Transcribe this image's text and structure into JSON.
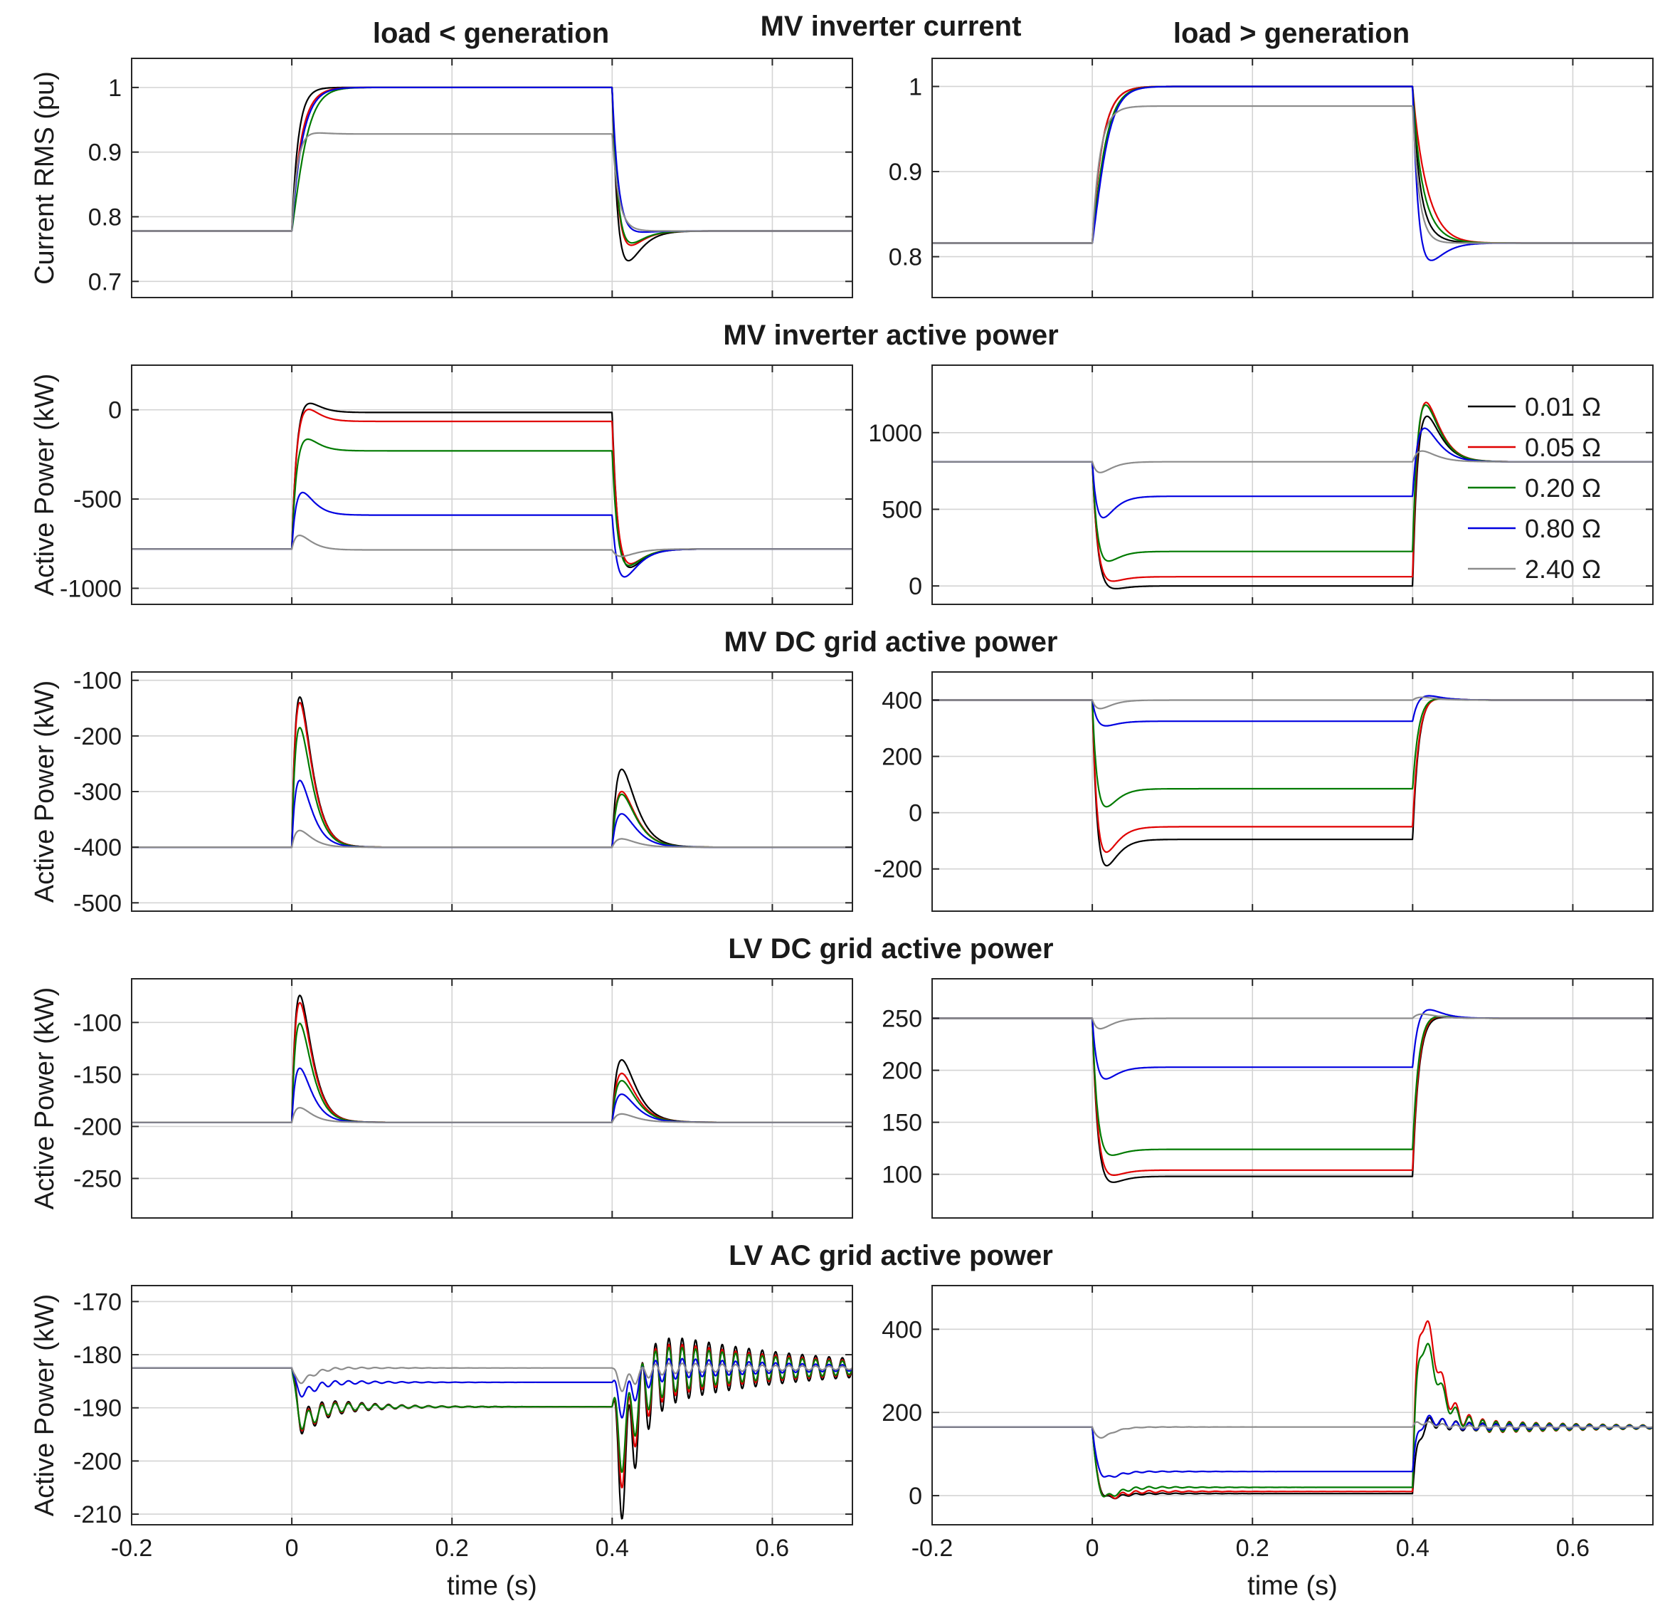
{
  "figure": {
    "col_titles": [
      "load < generation",
      "load > generation"
    ],
    "xlabel": "time (s)",
    "xlim": [
      -0.2,
      0.7
    ],
    "xticks": [
      -0.2,
      0,
      0.2,
      0.4,
      0.6
    ],
    "xtick_labels": [
      "-0.2",
      "0",
      "0.2",
      "0.4",
      "0.6"
    ]
  },
  "legend": {
    "entries": [
      {
        "label": "0.01 Ω",
        "color": "#000000"
      },
      {
        "label": "0.05 Ω",
        "color": "#e00000"
      },
      {
        "label": "0.20 Ω",
        "color": "#007a00"
      },
      {
        "label": "0.80 Ω",
        "color": "#0000e0"
      },
      {
        "label": "2.40 Ω",
        "color": "#8c8c8c"
      }
    ]
  },
  "chart_data": [
    {
      "type": "line",
      "title": "MV inverter current",
      "ylabel": "Current RMS (pu)",
      "left": {
        "ylim": [
          0.675,
          1.045
        ],
        "yticks": [
          0.7,
          0.8,
          0.9,
          1
        ],
        "ytick_labels": [
          "0.7",
          "0.8",
          "0.9",
          "1"
        ],
        "series": [
          {
            "name": "0.01 Ω",
            "initial": 0.778,
            "during": 1.0,
            "final": 0.778,
            "on_spike": 0.0,
            "off_spike": -0.075,
            "osc": 0.0
          },
          {
            "name": "0.05 Ω",
            "initial": 0.778,
            "during": 1.0,
            "final": 0.778,
            "on_spike": -0.03,
            "off_spike": -0.045,
            "osc": 0.0
          },
          {
            "name": "0.20 Ω",
            "initial": 0.778,
            "during": 1.0,
            "final": 0.778,
            "on_spike": -0.07,
            "off_spike": -0.04,
            "osc": 0.0
          },
          {
            "name": "0.80 Ω",
            "initial": 0.778,
            "during": 1.0,
            "final": 0.778,
            "on_spike": -0.04,
            "off_spike": -0.01,
            "osc": 0.0
          },
          {
            "name": "2.40 Ω",
            "initial": 0.778,
            "during": 0.928,
            "final": 0.778,
            "on_spike": 0.012,
            "off_spike": 0.0,
            "osc": 0.0
          }
        ]
      },
      "right": {
        "ylim": [
          0.752,
          1.033
        ],
        "yticks": [
          0.8,
          0.9,
          1
        ],
        "ytick_labels": [
          "0.8",
          "0.9",
          "1"
        ],
        "series": [
          {
            "name": "0.01 Ω",
            "initial": 0.816,
            "during": 1.0,
            "final": 0.816,
            "on_spike": -0.03,
            "off_spike": 0.012,
            "osc": 0.0
          },
          {
            "name": "0.05 Ω",
            "initial": 0.816,
            "during": 1.0,
            "final": 0.816,
            "on_spike": -0.03,
            "off_spike": 0.05,
            "osc": 0.0
          },
          {
            "name": "0.20 Ω",
            "initial": 0.816,
            "during": 1.0,
            "final": 0.816,
            "on_spike": -0.05,
            "off_spike": 0.03,
            "osc": 0.0
          },
          {
            "name": "0.80 Ω",
            "initial": 0.816,
            "during": 1.0,
            "final": 0.816,
            "on_spike": -0.06,
            "off_spike": -0.04,
            "osc": 0.0
          },
          {
            "name": "2.40 Ω",
            "initial": 0.816,
            "during": 0.977,
            "final": 0.816,
            "on_spike": -0.01,
            "off_spike": 0.0,
            "osc": 0.0
          }
        ]
      }
    },
    {
      "type": "line",
      "title": "MV inverter active power",
      "ylabel": "Active Power (kW)",
      "left": {
        "ylim": [
          -1090,
          250
        ],
        "yticks": [
          -1000,
          -500,
          0
        ],
        "ytick_labels": [
          "-1000",
          "-500",
          "0"
        ],
        "series": [
          {
            "name": "0.01 Ω",
            "initial": -780,
            "during": -15,
            "final": -780,
            "on_spike": 150,
            "off_spike": -190,
            "osc": 0.0
          },
          {
            "name": "0.05 Ω",
            "initial": -780,
            "during": -65,
            "final": -780,
            "on_spike": 170,
            "off_spike": -160,
            "osc": 0.0
          },
          {
            "name": "0.20 Ω",
            "initial": -780,
            "during": -230,
            "final": -780,
            "on_spike": 150,
            "off_spike": -160,
            "osc": 0.0
          },
          {
            "name": "0.80 Ω",
            "initial": -780,
            "during": -590,
            "final": -780,
            "on_spike": 170,
            "off_spike": -190,
            "osc": 0.0
          },
          {
            "name": "2.40 Ω",
            "initial": -780,
            "during": -785,
            "final": -780,
            "on_spike": 80,
            "off_spike": -40,
            "osc": 0.0
          }
        ]
      },
      "right": {
        "ylim": [
          -120,
          1440
        ],
        "yticks": [
          0,
          500,
          1000
        ],
        "ytick_labels": [
          "0",
          "500",
          "1000"
        ],
        "series": [
          {
            "name": "0.01 Ω",
            "initial": 810,
            "during": 0,
            "final": 810,
            "on_spike": -90,
            "off_spike": 420,
            "osc": 0.0
          },
          {
            "name": "0.05 Ω",
            "initial": 810,
            "during": 60,
            "final": 810,
            "on_spike": -110,
            "off_spike": 510,
            "osc": 0.0
          },
          {
            "name": "0.20 Ω",
            "initial": 810,
            "during": 225,
            "final": 810,
            "on_spike": -150,
            "off_spike": 470,
            "osc": 0.0
          },
          {
            "name": "0.80 Ω",
            "initial": 810,
            "during": 585,
            "final": 810,
            "on_spike": -190,
            "off_spike": 260,
            "osc": 0.0
          },
          {
            "name": "2.40 Ω",
            "initial": 810,
            "during": 810,
            "final": 810,
            "on_spike": -70,
            "off_spike": 70,
            "osc": 0.0
          }
        ]
      }
    },
    {
      "type": "line",
      "title": "MV DC grid active power",
      "ylabel": "Active Power (kW)",
      "left": {
        "ylim": [
          -515,
          -85
        ],
        "yticks": [
          -500,
          -400,
          -300,
          -200,
          -100
        ],
        "ytick_labels": [
          "-500",
          "-400",
          "-300",
          "-200",
          "-100"
        ],
        "series": [
          {
            "name": "0.01 Ω",
            "initial": -400,
            "during": -400,
            "final": -400,
            "on_spike": 270,
            "off_spike": 140,
            "osc": 0.0
          },
          {
            "name": "0.05 Ω",
            "initial": -400,
            "during": -400,
            "final": -400,
            "on_spike": 260,
            "off_spike": 100,
            "osc": 0.0
          },
          {
            "name": "0.20 Ω",
            "initial": -400,
            "during": -400,
            "final": -400,
            "on_spike": 215,
            "off_spike": 95,
            "osc": 0.0
          },
          {
            "name": "0.80 Ω",
            "initial": -400,
            "during": -400,
            "final": -400,
            "on_spike": 120,
            "off_spike": 60,
            "osc": 0.0
          },
          {
            "name": "2.40 Ω",
            "initial": -400,
            "during": -400,
            "final": -400,
            "on_spike": 30,
            "off_spike": 15,
            "osc": 0.0
          }
        ]
      },
      "right": {
        "ylim": [
          -350,
          500
        ],
        "yticks": [
          -200,
          0,
          200,
          400
        ],
        "ytick_labels": [
          "-200",
          "0",
          "200",
          "400"
        ],
        "series": [
          {
            "name": "0.01 Ω",
            "initial": 400,
            "during": -95,
            "final": 400,
            "on_spike": -180,
            "off_spike": 30,
            "osc": 0.0
          },
          {
            "name": "0.05 Ω",
            "initial": 400,
            "during": -50,
            "final": 400,
            "on_spike": -170,
            "off_spike": 25,
            "osc": 0.0
          },
          {
            "name": "0.20 Ω",
            "initial": 400,
            "during": 85,
            "final": 400,
            "on_spike": -120,
            "off_spike": 20,
            "osc": 0.0
          },
          {
            "name": "0.80 Ω",
            "initial": 400,
            "during": 325,
            "final": 400,
            "on_spike": -30,
            "off_spike": 25,
            "osc": 0.0
          },
          {
            "name": "2.40 Ω",
            "initial": 400,
            "during": 400,
            "final": 400,
            "on_spike": -30,
            "off_spike": 10,
            "osc": 0.0
          }
        ]
      }
    },
    {
      "type": "line",
      "title": "LV DC grid active power",
      "ylabel": "Active Power (kW)",
      "left": {
        "ylim": [
          -288,
          -58
        ],
        "yticks": [
          -250,
          -200,
          -150,
          -100
        ],
        "ytick_labels": [
          "-250",
          "-200",
          "-150",
          "-100"
        ],
        "series": [
          {
            "name": "0.01 Ω",
            "initial": -196,
            "during": -196,
            "final": -196,
            "on_spike": 122,
            "off_spike": 60,
            "osc": 0.0
          },
          {
            "name": "0.05 Ω",
            "initial": -196,
            "during": -196,
            "final": -196,
            "on_spike": 115,
            "off_spike": 47,
            "osc": 0.0
          },
          {
            "name": "0.20 Ω",
            "initial": -196,
            "during": -196,
            "final": -196,
            "on_spike": 95,
            "off_spike": 40,
            "osc": 0.0
          },
          {
            "name": "0.80 Ω",
            "initial": -196,
            "during": -196,
            "final": -196,
            "on_spike": 52,
            "off_spike": 27,
            "osc": 0.0
          },
          {
            "name": "2.40 Ω",
            "initial": -196,
            "during": -196,
            "final": -196,
            "on_spike": 14,
            "off_spike": 8,
            "osc": 0.0
          }
        ]
      },
      "right": {
        "ylim": [
          58,
          288
        ],
        "yticks": [
          100,
          150,
          200,
          250
        ],
        "ytick_labels": [
          "100",
          "150",
          "200",
          "250"
        ],
        "series": [
          {
            "name": "0.01 Ω",
            "initial": 250,
            "during": 98,
            "final": 250,
            "on_spike": -22,
            "off_spike": 6,
            "osc": 0.0
          },
          {
            "name": "0.05 Ω",
            "initial": 250,
            "during": 104,
            "final": 250,
            "on_spike": -20,
            "off_spike": 8,
            "osc": 0.0
          },
          {
            "name": "0.20 Ω",
            "initial": 250,
            "during": 124,
            "final": 250,
            "on_spike": -20,
            "off_spike": 8,
            "osc": 0.0
          },
          {
            "name": "0.80 Ω",
            "initial": 250,
            "during": 203,
            "final": 250,
            "on_spike": -20,
            "off_spike": 14,
            "osc": 0.0
          },
          {
            "name": "2.40 Ω",
            "initial": 250,
            "during": 250,
            "final": 250,
            "on_spike": -10,
            "off_spike": 4,
            "osc": 0.0
          }
        ]
      }
    },
    {
      "type": "line",
      "title": "LV AC grid active power",
      "ylabel": "Active Power (kW)",
      "left": {
        "ylim": [
          -212,
          -167
        ],
        "yticks": [
          -210,
          -200,
          -190,
          -180,
          -170
        ],
        "ytick_labels": [
          "-210",
          "-200",
          "-190",
          "-180",
          "-170"
        ],
        "series": [
          {
            "name": "0.01 Ω",
            "initial": -182.5,
            "during": -189.8,
            "final": -182.5,
            "on_spike": -4,
            "off_spike": -18,
            "osc": 9.5
          },
          {
            "name": "0.05 Ω",
            "initial": -182.5,
            "during": -189.8,
            "final": -182.5,
            "on_spike": -4,
            "off_spike": -14,
            "osc": 7.5
          },
          {
            "name": "0.20 Ω",
            "initial": -182.5,
            "during": -189.8,
            "final": -182.5,
            "on_spike": -4,
            "off_spike": -12,
            "osc": 6.5
          },
          {
            "name": "0.80 Ω",
            "initial": -182.5,
            "during": -185.2,
            "final": -182.5,
            "on_spike": -2.5,
            "off_spike": -6,
            "osc": 3.0
          },
          {
            "name": "2.40 Ω",
            "initial": -182.5,
            "during": -182.5,
            "final": -182.5,
            "on_spike": -2.5,
            "off_spike": -3,
            "osc": 1.5
          }
        ]
      },
      "right": {
        "ylim": [
          -70,
          505
        ],
        "yticks": [
          0,
          200,
          400
        ],
        "ytick_labels": [
          "0",
          "200",
          "400"
        ],
        "series": [
          {
            "name": "0.01 Ω",
            "initial": 165,
            "during": 5,
            "final": 165,
            "on_spike": -30,
            "off_spike": 25,
            "osc": 15
          },
          {
            "name": "0.05 Ω",
            "initial": 165,
            "during": 10,
            "final": 165,
            "on_spike": -35,
            "off_spike": 285,
            "osc": 25
          },
          {
            "name": "0.20 Ω",
            "initial": 165,
            "during": 20,
            "final": 165,
            "on_spike": -45,
            "off_spike": 225,
            "osc": 22
          },
          {
            "name": "0.80 Ω",
            "initial": 165,
            "during": 58,
            "final": 165,
            "on_spike": -30,
            "off_spike": 30,
            "osc": 12
          },
          {
            "name": "2.40 Ω",
            "initial": 165,
            "during": 165,
            "final": 165,
            "on_spike": -25,
            "off_spike": 10,
            "osc": 5
          }
        ]
      }
    }
  ]
}
